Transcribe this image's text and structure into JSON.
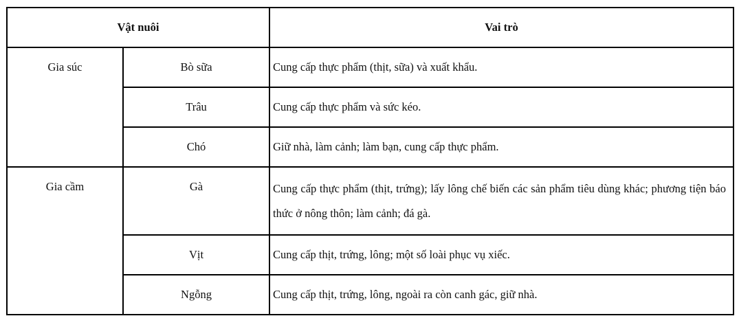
{
  "table": {
    "headers": [
      "Vật nuôi",
      "Vai trò"
    ],
    "groups": [
      {
        "name": "Gia súc",
        "rows": [
          {
            "animal": "Bò sữa",
            "role": "Cung cấp thực phẩm (thịt, sữa) và xuất khẩu."
          },
          {
            "animal": "Trâu",
            "role": "Cung cấp thực phẩm và sức kéo."
          },
          {
            "animal": "Chó",
            "role": "Giữ nhà, làm cảnh; làm bạn, cung cấp thực phẩm."
          }
        ]
      },
      {
        "name": "Gia cầm",
        "rows": [
          {
            "animal": "Gà",
            "role": "Cung cấp thực phẩm (thịt, trứng); lấy lông chế biến các sản phẩm tiêu dùng khác; phương tiện báo thức ở nông thôn; làm cảnh; đá gà."
          },
          {
            "animal": "Vịt",
            "role": "Cung cấp thịt, trứng, lông; một số loài phục vụ xiếc."
          },
          {
            "animal": "Ngỗng",
            "role": "Cung cấp thịt, trứng, lông, ngoài ra còn canh gác, giữ nhà."
          }
        ]
      }
    ]
  }
}
